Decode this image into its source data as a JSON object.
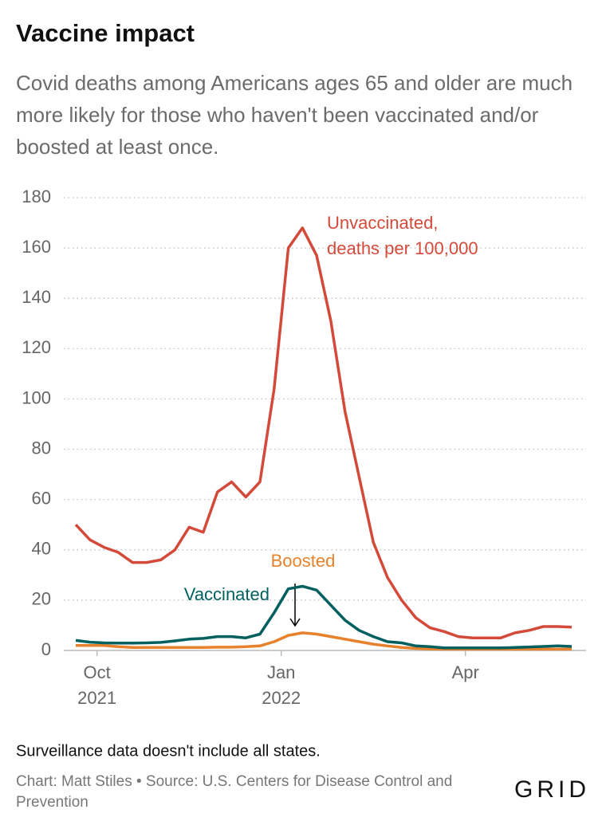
{
  "chart_data": {
    "type": "line",
    "title": "Vaccine impact",
    "subtitle": "Covid deaths among Americans ages 65 and older are much more likely for those who haven't been vaccinated and/or boosted at least once.",
    "note": "Surveillance data doesn't include all states.",
    "source": "Chart: Matt Stiles • Source: U.S. Centers for Disease Control and Prevention",
    "logo": "GRID",
    "x": [
      0,
      1,
      2,
      3,
      4,
      5,
      6,
      7,
      8,
      9,
      10,
      11,
      12,
      13,
      14,
      15,
      16,
      17,
      18,
      19,
      20,
      21,
      22,
      23,
      24,
      25,
      26,
      27,
      28,
      29,
      30,
      31,
      32,
      33,
      34,
      35
    ],
    "xlim": [
      0,
      35
    ],
    "xticks": [
      {
        "value": 1.5,
        "label": "Oct 2021"
      },
      {
        "value": 14.5,
        "label": "Jan 2022"
      },
      {
        "value": 27.5,
        "label": "Apr"
      }
    ],
    "ylim": [
      0,
      180
    ],
    "yticks": [
      0,
      20,
      40,
      60,
      80,
      100,
      120,
      140,
      160,
      180
    ],
    "grid": true,
    "series": [
      {
        "name": "Unvaccinated, deaths per 100,000",
        "color": "#d44a3a",
        "values": [
          50,
          44,
          41,
          39,
          35,
          35,
          36,
          40,
          49,
          47,
          63,
          67,
          61,
          67,
          104,
          160,
          168,
          157,
          131,
          95,
          69,
          43,
          29,
          20,
          13,
          9,
          7.5,
          5.5,
          5,
          5,
          5,
          7,
          8,
          9.5,
          9.5,
          9.3
        ]
      },
      {
        "name": "Vaccinated",
        "color": "#00605f",
        "values": [
          4,
          3.3,
          3,
          2.9,
          2.9,
          3,
          3.2,
          3.8,
          4.5,
          4.8,
          5.5,
          5.5,
          5,
          6.5,
          15,
          24.5,
          25.5,
          24,
          18,
          12,
          8,
          5.5,
          3.5,
          3,
          1.8,
          1.5,
          1,
          1,
          1,
          1,
          1,
          1.2,
          1.4,
          1.6,
          1.8,
          1.6
        ]
      },
      {
        "name": "Boosted",
        "color": "#e8812c",
        "values": [
          2,
          2,
          2,
          1.5,
          1.2,
          1.2,
          1.2,
          1.2,
          1.2,
          1.2,
          1.3,
          1.3,
          1.5,
          1.8,
          3.5,
          6,
          7,
          6.5,
          5.5,
          4.5,
          3.5,
          2.5,
          1.8,
          1.2,
          0.8,
          0.6,
          0.5,
          0.5,
          0.5,
          0.5,
          0.5,
          0.5,
          0.5,
          0.5,
          0.5,
          0.5
        ]
      }
    ]
  }
}
